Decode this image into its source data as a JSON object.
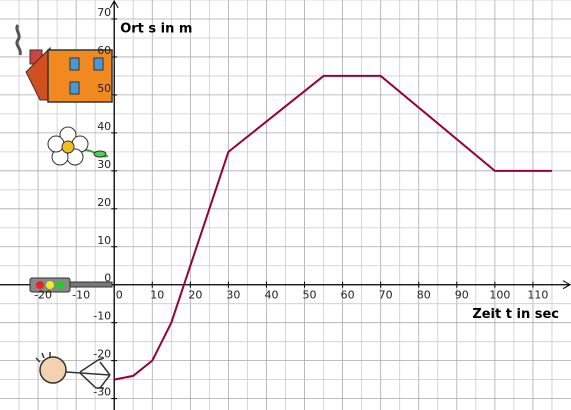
{
  "chart_data": {
    "type": "line",
    "x_label": "Zeit t in sec",
    "y_label": "Ort s in m",
    "x": [
      0,
      5,
      10,
      15,
      20,
      25,
      30,
      55,
      70,
      100,
      115
    ],
    "series": [
      {
        "name": null,
        "color": "#990033",
        "values": [
          -25,
          -24,
          -20,
          -10,
          5,
          20,
          35,
          55,
          55,
          30,
          30
        ]
      }
    ],
    "xlim": [
      -30,
      120
    ],
    "ylim": [
      -33,
      75
    ],
    "xticks": [
      -20,
      -10,
      0,
      10,
      20,
      30,
      40,
      50,
      60,
      70,
      80,
      90,
      100,
      110
    ],
    "yticks": [
      -30,
      -20,
      -10,
      0,
      10,
      20,
      30,
      40,
      50,
      60,
      70
    ],
    "grid": true
  }
}
